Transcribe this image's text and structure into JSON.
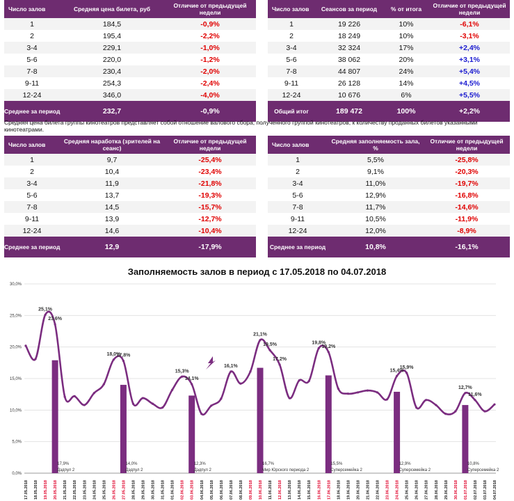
{
  "table1": {
    "headers": [
      "Число залов",
      "Средняя цена билета, руб",
      "Отличие от предыдущей недели"
    ],
    "rows": [
      {
        "halls": "1",
        "v1": "184,5",
        "diff": "-0,9%"
      },
      {
        "halls": "2",
        "v1": "195,4",
        "diff": "-2,2%"
      },
      {
        "halls": "3-4",
        "v1": "229,1",
        "diff": "-1,0%"
      },
      {
        "halls": "5-6",
        "v1": "220,0",
        "diff": "-1,2%"
      },
      {
        "halls": "7-8",
        "v1": "230,4",
        "diff": "-2,0%"
      },
      {
        "halls": "9-11",
        "v1": "254,3",
        "diff": "-2,4%"
      },
      {
        "halls": "12-24",
        "v1": "346,0",
        "diff": "-4,0%"
      }
    ],
    "footer": {
      "label": "Среднее за период",
      "v1": "232,7",
      "diff": "-0,9%"
    }
  },
  "table2": {
    "headers": [
      "Число залов",
      "Сеансов за период",
      "% от итога",
      "Отличие от предыдущей недели"
    ],
    "rows": [
      {
        "halls": "1",
        "v1": "19 226",
        "v2": "10%",
        "diff": "-6,1%"
      },
      {
        "halls": "2",
        "v1": "18 249",
        "v2": "10%",
        "diff": "-3,1%"
      },
      {
        "halls": "3-4",
        "v1": "32 324",
        "v2": "17%",
        "diff": "+2,4%"
      },
      {
        "halls": "5-6",
        "v1": "38 062",
        "v2": "20%",
        "diff": "+3,1%"
      },
      {
        "halls": "7-8",
        "v1": "44 807",
        "v2": "24%",
        "diff": "+5,4%"
      },
      {
        "halls": "9-11",
        "v1": "26 128",
        "v2": "14%",
        "diff": "+4,5%"
      },
      {
        "halls": "12-24",
        "v1": "10 676",
        "v2": "6%",
        "diff": "+5,5%"
      }
    ],
    "footer": {
      "label": "Общий итог",
      "v1": "189 472",
      "v2": "100%",
      "diff": "+2,2%"
    }
  },
  "note": "Средняя цена билета группы кинотеатров представляет собой отношение валового сбора, полученного группой кинотеатров, к количеству проданных билетов указанными кинотеатрами.",
  "table3": {
    "headers": [
      "Число залов",
      "Средняя наработка (зрителей на сеанс)",
      "Отличие от предыдущей недели"
    ],
    "rows": [
      {
        "halls": "1",
        "v1": "9,7",
        "diff": "-25,4%"
      },
      {
        "halls": "2",
        "v1": "10,4",
        "diff": "-23,4%"
      },
      {
        "halls": "3-4",
        "v1": "11,9",
        "diff": "-21,8%"
      },
      {
        "halls": "5-6",
        "v1": "13,7",
        "diff": "-19,3%"
      },
      {
        "halls": "7-8",
        "v1": "14,5",
        "diff": "-15,7%"
      },
      {
        "halls": "9-11",
        "v1": "13,9",
        "diff": "-12,7%"
      },
      {
        "halls": "12-24",
        "v1": "14,6",
        "diff": "-10,4%"
      }
    ],
    "footer": {
      "label": "Среднее за период",
      "v1": "12,9",
      "diff": "-17,9%"
    }
  },
  "table4": {
    "headers": [
      "Число залов",
      "Средняя заполняемость зала, %",
      "Отличие от предыдущей недели"
    ],
    "rows": [
      {
        "halls": "1",
        "v1": "5,5%",
        "diff": "-25,8%"
      },
      {
        "halls": "2",
        "v1": "9,1%",
        "diff": "-20,3%"
      },
      {
        "halls": "3-4",
        "v1": "11,0%",
        "diff": "-19,7%"
      },
      {
        "halls": "5-6",
        "v1": "12,9%",
        "diff": "-16,8%"
      },
      {
        "halls": "7-8",
        "v1": "11,7%",
        "diff": "-14,6%"
      },
      {
        "halls": "9-11",
        "v1": "10,5%",
        "diff": "-11,9%"
      },
      {
        "halls": "12-24",
        "v1": "12,0%",
        "diff": "-8,9%"
      }
    ],
    "footer": {
      "label": "Среднее за период",
      "v1": "10,8%",
      "diff": "-16,1%"
    }
  },
  "colors": {
    "header": "#6e2c70",
    "negative": "#e00000",
    "positive": "#1a1ad0",
    "line": "#7b2d80",
    "weekend": "#e0002a"
  },
  "chart_data": {
    "type": "line",
    "title": "Заполняемость залов в период с 17.05.2018 по 04.07.2018",
    "ylim": [
      0,
      30
    ],
    "y_ticks": [
      "0,0%",
      "5,0%",
      "10,0%",
      "15,0%",
      "20,0%",
      "25,0%",
      "30,0%"
    ],
    "x": [
      "17.05.2018",
      "18.05.2018",
      "19.05.2018",
      "20.05.2018",
      "21.05.2018",
      "22.05.2018",
      "23.05.2018",
      "24.05.2018",
      "25.05.2018",
      "26.05.2018",
      "27.05.2018",
      "28.05.2018",
      "29.05.2018",
      "30.05.2018",
      "31.05.2018",
      "01.06.2018",
      "02.06.2018",
      "03.06.2018",
      "04.06.2018",
      "05.06.2018",
      "06.06.2018",
      "07.06.2018",
      "08.06.2018",
      "09.06.2018",
      "10.06.2018",
      "11.06.2018",
      "12.06.2018",
      "13.06.2018",
      "14.06.2018",
      "15.06.2018",
      "16.06.2018",
      "17.06.2018",
      "18.06.2018",
      "19.06.2018",
      "20.06.2018",
      "21.06.2018",
      "22.06.2018",
      "23.06.2018",
      "24.06.2018",
      "25.06.2018",
      "26.06.2018",
      "27.06.2018",
      "28.06.2018",
      "29.06.2018",
      "30.06.2018",
      "01.07.2018",
      "02.07.2018",
      "03.07.2018",
      "04.07.2018"
    ],
    "weekend_dates": [
      "19.05.2018",
      "20.05.2018",
      "26.05.2018",
      "27.05.2018",
      "02.06.2018",
      "03.06.2018",
      "09.06.2018",
      "10.06.2018",
      "12.06.2018",
      "16.06.2018",
      "17.06.2018",
      "23.06.2018",
      "24.06.2018",
      "30.06.2018",
      "01.07.2018"
    ],
    "series": [
      {
        "values": [
          20.2,
          18.1,
          25.1,
          23.6,
          12.1,
          12.2,
          10.8,
          12.7,
          14.1,
          18.0,
          17.8,
          11.0,
          11.9,
          11.0,
          10.4,
          13.2,
          15.3,
          14.1,
          9.4,
          10.7,
          11.8,
          16.1,
          14.2,
          16.1,
          21.1,
          19.5,
          17.2,
          11.9,
          14.7,
          14.6,
          19.8,
          19.2,
          13.4,
          12.6,
          12.8,
          13.1,
          12.8,
          11.7,
          15.4,
          15.9,
          10.4,
          11.6,
          10.8,
          9.4,
          9.8,
          12.7,
          11.6,
          9.8,
          10.9
        ]
      }
    ],
    "point_labels": [
      {
        "index": 2,
        "text": "25,1%"
      },
      {
        "index": 3,
        "text": "23,6%"
      },
      {
        "index": 9,
        "text": "18,0%"
      },
      {
        "index": 10,
        "text": "17,8%"
      },
      {
        "index": 16,
        "text": "15,3%"
      },
      {
        "index": 17,
        "text": "14,1%"
      },
      {
        "index": 21,
        "text": "16,1%"
      },
      {
        "index": 24,
        "text": "21,1%"
      },
      {
        "index": 25,
        "text": "19,5%"
      },
      {
        "index": 26,
        "text": "17,2%"
      },
      {
        "index": 30,
        "text": "19,8%"
      },
      {
        "index": 31,
        "text": "19,2%"
      },
      {
        "index": 38,
        "text": "15,4%"
      },
      {
        "index": 39,
        "text": "15,9%"
      },
      {
        "index": 45,
        "text": "12,7%"
      },
      {
        "index": 46,
        "text": "11,6%"
      }
    ],
    "bars": [
      {
        "index": 3,
        "value": 17.9,
        "label": "17,9%",
        "film": "Дэдпул 2"
      },
      {
        "index": 10,
        "value": 14.0,
        "label": "14,0%",
        "film": "Дэдпул 2"
      },
      {
        "index": 17,
        "value": 12.3,
        "label": "12,3%",
        "film": "Дэдпул 2"
      },
      {
        "index": 24,
        "value": 16.7,
        "label": "16,7%",
        "film": "Мир Юрского периода 2"
      },
      {
        "index": 31,
        "value": 15.5,
        "label": "15,5%",
        "film": "Суперсемейка 2"
      },
      {
        "index": 38,
        "value": 12.9,
        "label": "12,9%",
        "film": "Суперсемейка 2"
      },
      {
        "index": 45,
        "value": 10.8,
        "label": "10,8%",
        "film": "Суперсемейка 2"
      }
    ],
    "grid": true,
    "legend": "none"
  }
}
